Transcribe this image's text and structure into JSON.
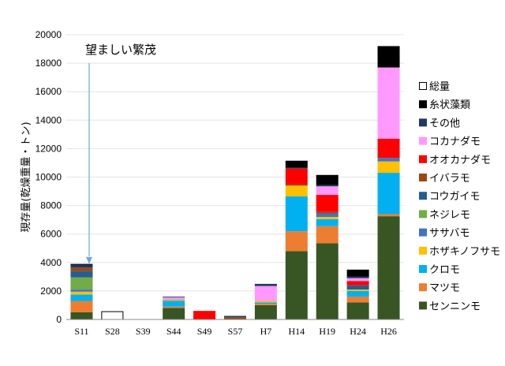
{
  "chart_data": {
    "type": "bar",
    "stacked": true,
    "ylabel": "現存量(乾燥重量・トン)",
    "xlabel": "",
    "ylim": [
      0,
      20000
    ],
    "yticks": [
      0,
      2000,
      4000,
      6000,
      8000,
      10000,
      12000,
      14000,
      16000,
      18000,
      20000
    ],
    "categories": [
      "S11",
      "S28",
      "S39",
      "S44",
      "S49",
      "S57",
      "H7",
      "H14",
      "H19",
      "H24",
      "H26"
    ],
    "annotation": "望ましい繁茂",
    "annotation_arrow_color": "#6fa8dc",
    "legend_position": "right",
    "total": {
      "name": "総量",
      "values": [
        0,
        550,
        0,
        0,
        0,
        0,
        0,
        0,
        0,
        0,
        0
      ]
    },
    "series": [
      {
        "name": "センニンモ",
        "color": "#375623",
        "values": [
          500,
          0,
          0,
          800,
          0,
          0,
          1000,
          4800,
          5350,
          1200,
          7250
        ]
      },
      {
        "name": "マツモ",
        "color": "#ed7d31",
        "values": [
          800,
          0,
          0,
          100,
          0,
          0,
          100,
          1400,
          1200,
          400,
          150
        ]
      },
      {
        "name": "クロモ",
        "color": "#00b0f0",
        "values": [
          450,
          0,
          0,
          400,
          0,
          0,
          100,
          2450,
          500,
          400,
          2900
        ]
      },
      {
        "name": "ホザキノフサモ",
        "color": "#ffc000",
        "values": [
          200,
          0,
          0,
          50,
          0,
          0,
          100,
          750,
          150,
          100,
          800
        ]
      },
      {
        "name": "ササバモ",
        "color": "#4472c4",
        "values": [
          150,
          0,
          0,
          0,
          0,
          0,
          0,
          0,
          250,
          0,
          250
        ]
      },
      {
        "name": "ネジレモ",
        "color": "#70ad47",
        "values": [
          850,
          0,
          0,
          50,
          0,
          0,
          0,
          0,
          0,
          0,
          0
        ]
      },
      {
        "name": "コウガイモ",
        "color": "#255e91",
        "values": [
          450,
          0,
          0,
          0,
          0,
          0,
          0,
          0,
          0,
          300,
          0
        ]
      },
      {
        "name": "イバラモ",
        "color": "#9e480e",
        "values": [
          250,
          0,
          0,
          0,
          0,
          150,
          0,
          100,
          100,
          0,
          0
        ]
      },
      {
        "name": "オオカナダモ",
        "color": "#ff0000",
        "values": [
          0,
          0,
          0,
          0,
          600,
          0,
          0,
          1100,
          1200,
          300,
          1350
        ]
      },
      {
        "name": "コカナダモ",
        "color": "#ff99ff",
        "values": [
          0,
          0,
          0,
          150,
          0,
          0,
          1050,
          0,
          600,
          200,
          5000
        ]
      },
      {
        "name": "その他",
        "color": "#1f3864",
        "values": [
          200,
          0,
          0,
          50,
          0,
          100,
          150,
          50,
          100,
          100,
          0
        ]
      },
      {
        "name": "糸状藻類",
        "color": "#000000",
        "values": [
          50,
          0,
          0,
          0,
          0,
          0,
          0,
          500,
          700,
          500,
          1500
        ]
      }
    ]
  }
}
